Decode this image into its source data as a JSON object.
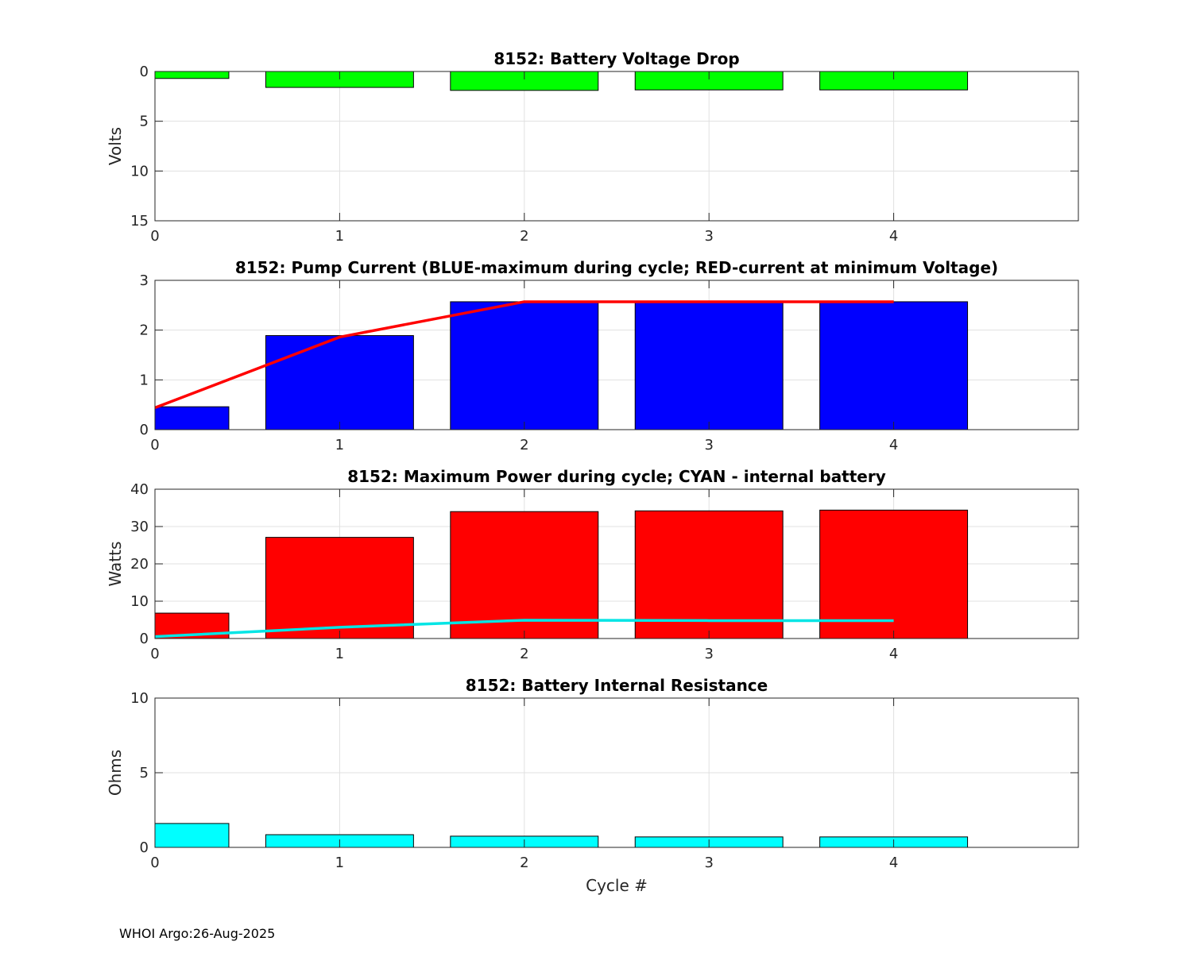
{
  "footer": "WHOI Argo:26-Aug-2025",
  "chart_data": [
    {
      "type": "bar",
      "title": "8152: Battery Voltage Drop",
      "xlabel": "",
      "ylabel": "Volts",
      "x": [
        0,
        1,
        2,
        3,
        4
      ],
      "xlim": [
        0,
        5
      ],
      "ylim": [
        0,
        15
      ],
      "y_reversed": true,
      "yticks": [
        0,
        5,
        10,
        15
      ],
      "xticks": [
        0,
        1,
        2,
        3,
        4
      ],
      "grid": true,
      "series": [
        {
          "name": "Voltage drop",
          "kind": "bar",
          "color": "#00ff00",
          "values": [
            0.7,
            1.6,
            1.9,
            1.85,
            1.85
          ]
        }
      ]
    },
    {
      "type": "bar",
      "title": "8152: Pump Current (BLUE-maximum during cycle; RED-current at minimum Voltage)",
      "xlabel": "",
      "ylabel": "",
      "x": [
        0,
        1,
        2,
        3,
        4
      ],
      "xlim": [
        0,
        5
      ],
      "ylim": [
        0,
        3
      ],
      "y_reversed": false,
      "yticks": [
        0,
        1,
        2,
        3
      ],
      "xticks": [
        0,
        1,
        2,
        3,
        4
      ],
      "grid": true,
      "series": [
        {
          "name": "Maximum during cycle",
          "kind": "bar",
          "color": "#0000ff",
          "values": [
            0.46,
            1.89,
            2.57,
            2.57,
            2.57
          ]
        },
        {
          "name": "Current at minimum Voltage",
          "kind": "line",
          "color": "#ff0000",
          "values": [
            0.44,
            1.86,
            2.57,
            2.57,
            2.57
          ]
        }
      ]
    },
    {
      "type": "bar",
      "title": "8152: Maximum Power during cycle; CYAN - internal battery",
      "xlabel": "",
      "ylabel": "Watts",
      "x": [
        0,
        1,
        2,
        3,
        4
      ],
      "xlim": [
        0,
        5
      ],
      "ylim": [
        0,
        40
      ],
      "y_reversed": false,
      "yticks": [
        0,
        10,
        20,
        30,
        40
      ],
      "xticks": [
        0,
        1,
        2,
        3,
        4
      ],
      "grid": true,
      "series": [
        {
          "name": "Maximum Power",
          "kind": "bar",
          "color": "#ff0000",
          "values": [
            6.8,
            27.1,
            34.0,
            34.2,
            34.4
          ]
        },
        {
          "name": "Internal battery",
          "kind": "line",
          "color": "#00e5e5",
          "values": [
            0.5,
            3.0,
            4.9,
            4.8,
            4.8
          ]
        }
      ]
    },
    {
      "type": "bar",
      "title": "8152: Battery Internal Resistance",
      "xlabel": "Cycle #",
      "ylabel": "Ohms",
      "x": [
        0,
        1,
        2,
        3,
        4
      ],
      "xlim": [
        0,
        5
      ],
      "ylim": [
        0,
        10
      ],
      "y_reversed": false,
      "yticks": [
        0,
        5,
        10
      ],
      "xticks": [
        0,
        1,
        2,
        3,
        4
      ],
      "grid": true,
      "series": [
        {
          "name": "Internal Resistance",
          "kind": "bar",
          "color": "#00ffff",
          "values": [
            1.6,
            0.85,
            0.75,
            0.7,
            0.7
          ]
        }
      ]
    }
  ]
}
